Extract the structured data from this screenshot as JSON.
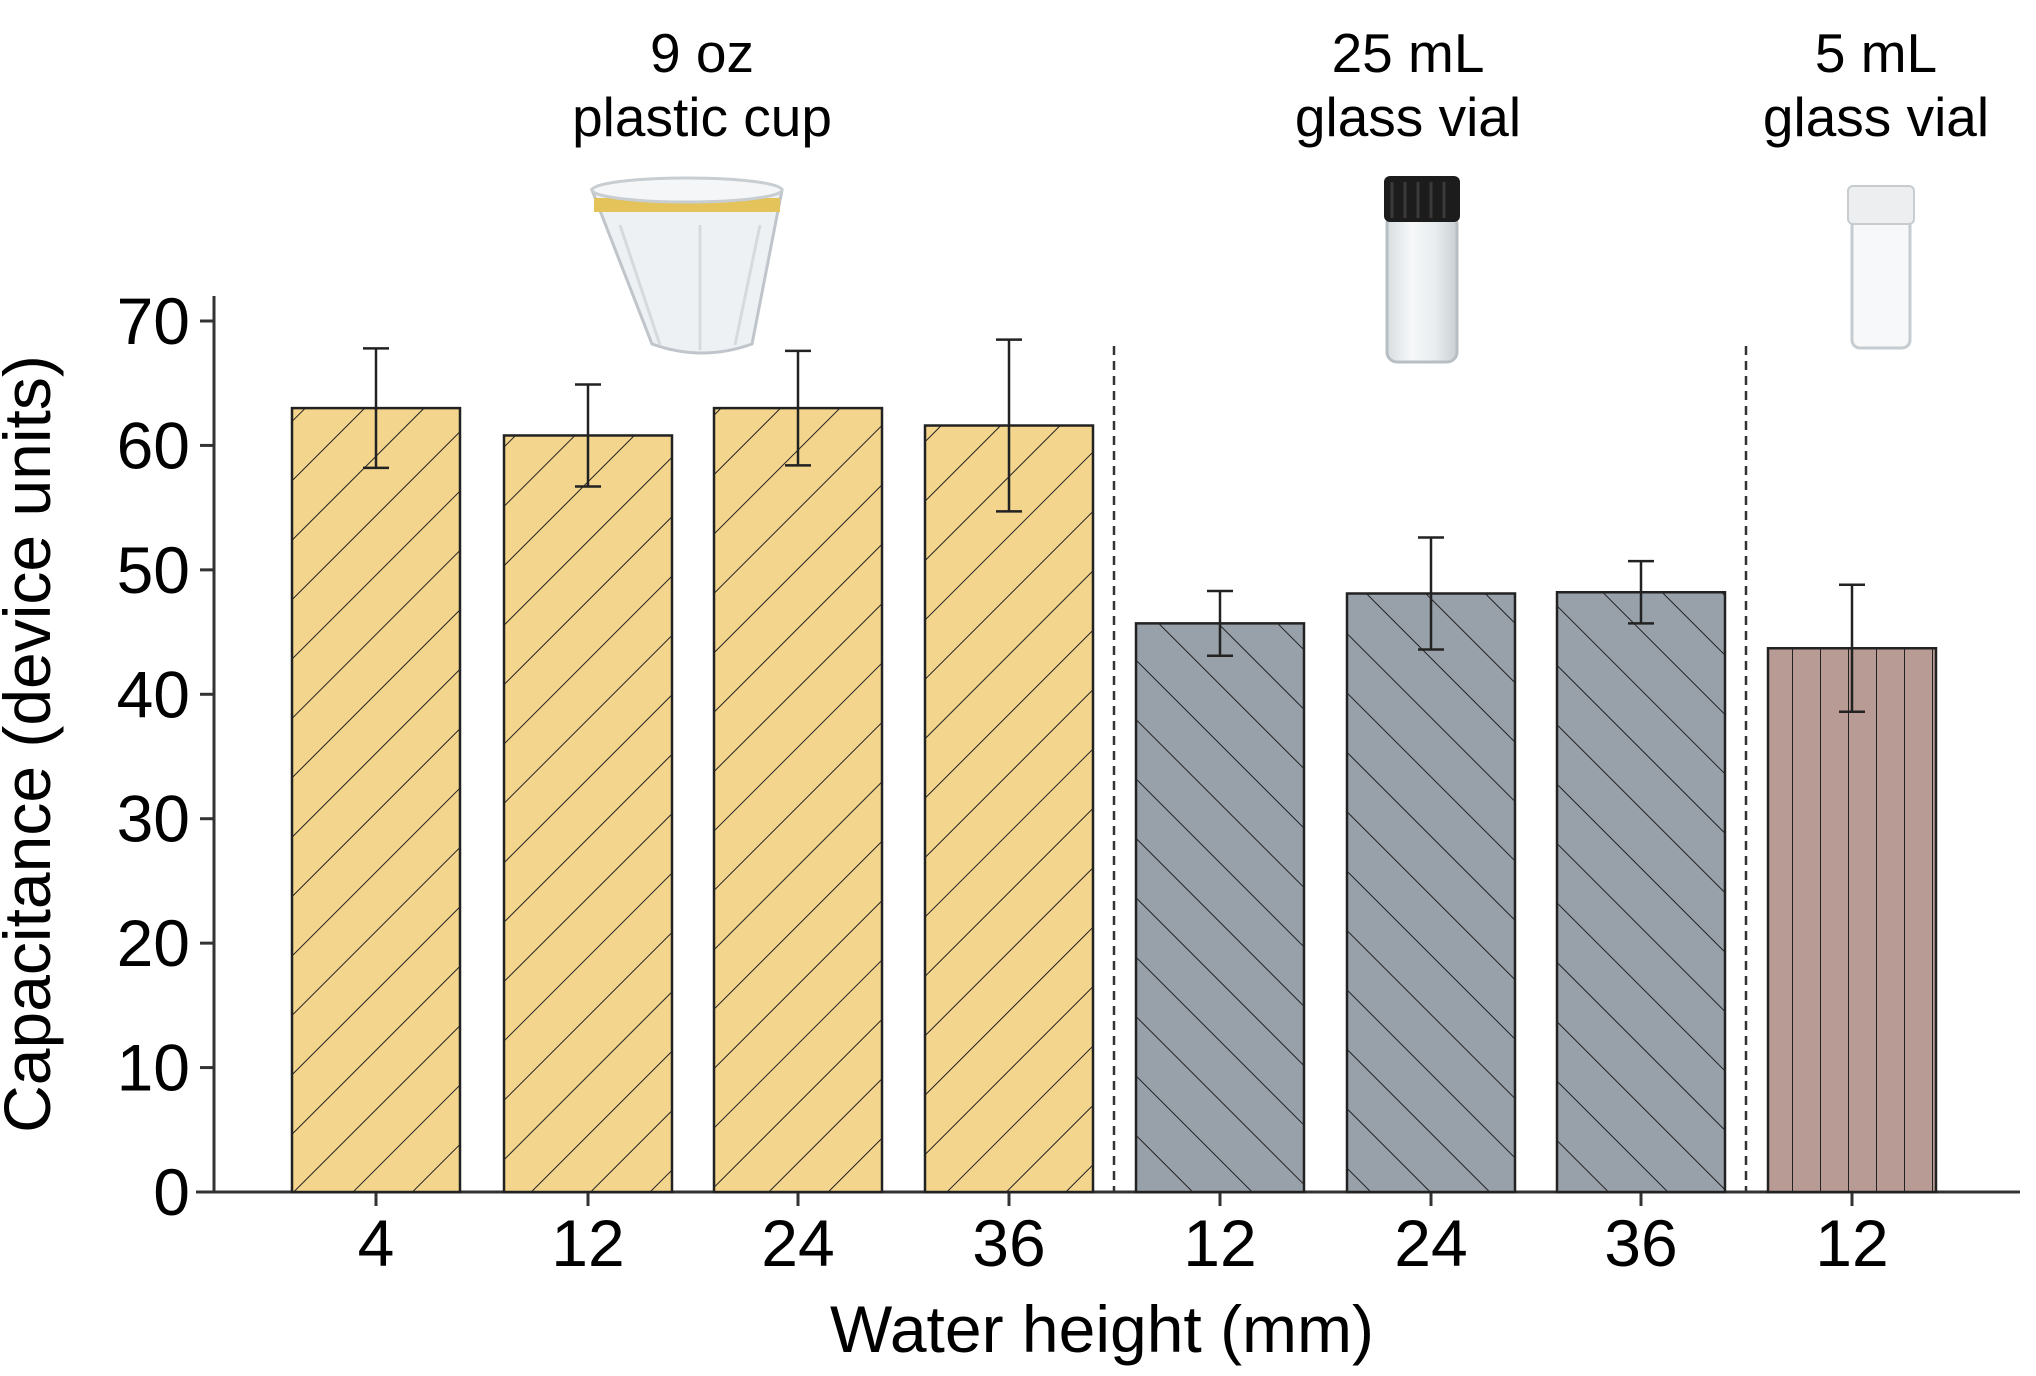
{
  "chart_data": {
    "type": "bar",
    "xlabel": "Water height (mm)",
    "ylabel": "Capacitance (device units)",
    "ylim": [
      0,
      70
    ],
    "yticks": [
      0,
      10,
      20,
      30,
      40,
      50,
      60,
      70
    ],
    "grid": false,
    "groups": [
      {
        "title_lines": [
          "9 oz",
          "plastic cup"
        ],
        "color": "#f3d58d",
        "hatch": "forward-diagonal",
        "icon": "plastic-cup-icon",
        "bars": [
          {
            "x": "4",
            "value": 63.0,
            "error": 4.8
          },
          {
            "x": "12",
            "value": 60.8,
            "error": 4.1
          },
          {
            "x": "24",
            "value": 63.0,
            "error": 4.6
          },
          {
            "x": "36",
            "value": 61.6,
            "error": 6.9
          }
        ]
      },
      {
        "title_lines": [
          "25 mL",
          "glass vial"
        ],
        "color": "#98a0aa",
        "hatch": "back-diagonal",
        "icon": "glass-vial-black-cap-icon",
        "bars": [
          {
            "x": "12",
            "value": 45.7,
            "error": 2.6
          },
          {
            "x": "24",
            "value": 48.1,
            "error": 4.5
          },
          {
            "x": "36",
            "value": 48.2,
            "error": 2.5
          }
        ]
      },
      {
        "title_lines": [
          "5 mL",
          "glass vial"
        ],
        "color": "#b89b94",
        "hatch": "vertical",
        "icon": "glass-vial-white-cap-icon",
        "bars": [
          {
            "x": "12",
            "value": 43.7,
            "error": 5.1
          }
        ]
      }
    ]
  }
}
